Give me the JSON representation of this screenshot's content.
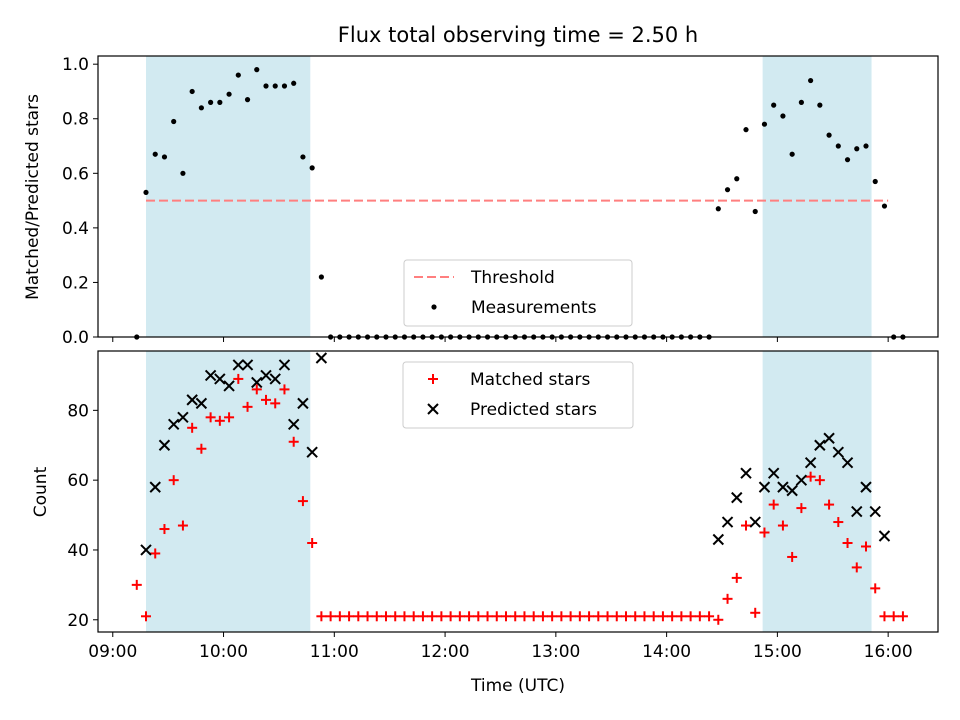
{
  "chart_data": [
    {
      "type": "scatter",
      "title": "Flux total observing time = 2.50 h",
      "xlabel": "",
      "ylabel": "Matched/Predicted stars",
      "x_time_range": [
        "08:52",
        "16:27"
      ],
      "ylim": [
        0,
        1.03
      ],
      "yticks": [
        0.0,
        0.2,
        0.4,
        0.6,
        0.8,
        1.0
      ],
      "ytick_labels": [
        "0.0",
        "0.2",
        "0.4",
        "0.6",
        "0.8",
        "1.0"
      ],
      "grid": false,
      "legend_position": "lower center",
      "shaded_intervals": [
        [
          "09:18",
          "10:47"
        ],
        [
          "14:52",
          "15:51"
        ]
      ],
      "shade_color": "#add8e6",
      "threshold": {
        "name": "Threshold",
        "value": 0.5,
        "x_range": [
          "09:18",
          "16:00"
        ],
        "color": "#ff7f7f",
        "style": "dashed"
      },
      "series": [
        {
          "name": "Measurements",
          "color": "#000000",
          "marker": "dot",
          "points": [
            [
              "09:13",
              0.0
            ],
            [
              "09:18",
              0.53
            ],
            [
              "09:23",
              0.67
            ],
            [
              "09:28",
              0.66
            ],
            [
              "09:33",
              0.79
            ],
            [
              "09:38",
              0.6
            ],
            [
              "09:43",
              0.9
            ],
            [
              "09:48",
              0.84
            ],
            [
              "09:53",
              0.86
            ],
            [
              "09:58",
              0.86
            ],
            [
              "10:03",
              0.89
            ],
            [
              "10:08",
              0.96
            ],
            [
              "10:13",
              0.87
            ],
            [
              "10:18",
              0.98
            ],
            [
              "10:23",
              0.92
            ],
            [
              "10:28",
              0.92
            ],
            [
              "10:33",
              0.92
            ],
            [
              "10:38",
              0.93
            ],
            [
              "10:43",
              0.66
            ],
            [
              "10:48",
              0.62
            ],
            [
              "10:53",
              0.22
            ],
            [
              "10:58",
              0.0
            ],
            [
              "11:03",
              0.0
            ],
            [
              "11:08",
              0.0
            ],
            [
              "11:13",
              0.0
            ],
            [
              "11:18",
              0.0
            ],
            [
              "11:23",
              0.0
            ],
            [
              "11:28",
              0.0
            ],
            [
              "11:33",
              0.0
            ],
            [
              "11:38",
              0.0
            ],
            [
              "11:43",
              0.0
            ],
            [
              "11:48",
              0.0
            ],
            [
              "11:53",
              0.0
            ],
            [
              "11:58",
              0.0
            ],
            [
              "12:03",
              0.0
            ],
            [
              "12:08",
              0.0
            ],
            [
              "12:13",
              0.0
            ],
            [
              "12:18",
              0.0
            ],
            [
              "12:23",
              0.0
            ],
            [
              "12:28",
              0.0
            ],
            [
              "12:33",
              0.0
            ],
            [
              "12:38",
              0.0
            ],
            [
              "12:43",
              0.0
            ],
            [
              "12:48",
              0.0
            ],
            [
              "12:53",
              0.0
            ],
            [
              "12:58",
              0.0
            ],
            [
              "13:03",
              0.0
            ],
            [
              "13:08",
              0.0
            ],
            [
              "13:13",
              0.0
            ],
            [
              "13:18",
              0.0
            ],
            [
              "13:23",
              0.0
            ],
            [
              "13:28",
              0.0
            ],
            [
              "13:33",
              0.0
            ],
            [
              "13:38",
              0.0
            ],
            [
              "13:43",
              0.0
            ],
            [
              "13:48",
              0.0
            ],
            [
              "13:53",
              0.0
            ],
            [
              "13:58",
              0.0
            ],
            [
              "14:03",
              0.0
            ],
            [
              "14:08",
              0.0
            ],
            [
              "14:13",
              0.0
            ],
            [
              "14:18",
              0.0
            ],
            [
              "14:23",
              0.0
            ],
            [
              "14:28",
              0.47
            ],
            [
              "14:33",
              0.54
            ],
            [
              "14:38",
              0.58
            ],
            [
              "14:43",
              0.76
            ],
            [
              "14:48",
              0.46
            ],
            [
              "14:53",
              0.78
            ],
            [
              "14:58",
              0.85
            ],
            [
              "15:03",
              0.81
            ],
            [
              "15:08",
              0.67
            ],
            [
              "15:13",
              0.86
            ],
            [
              "15:18",
              0.94
            ],
            [
              "15:23",
              0.85
            ],
            [
              "15:28",
              0.74
            ],
            [
              "15:33",
              0.7
            ],
            [
              "15:38",
              0.65
            ],
            [
              "15:43",
              0.69
            ],
            [
              "15:48",
              0.7
            ],
            [
              "15:53",
              0.57
            ],
            [
              "15:58",
              0.48
            ],
            [
              "16:03",
              0.0
            ],
            [
              "16:08",
              0.0
            ]
          ]
        }
      ]
    },
    {
      "type": "scatter",
      "title": "",
      "xlabel": "Time (UTC)",
      "ylabel": "Count",
      "x_time_range": [
        "08:52",
        "16:27"
      ],
      "ylim": [
        16.5,
        97
      ],
      "yticks": [
        20,
        40,
        60,
        80
      ],
      "ytick_labels": [
        "20",
        "40",
        "60",
        "80"
      ],
      "xticks": [
        "09:00",
        "10:00",
        "11:00",
        "12:00",
        "13:00",
        "14:00",
        "15:00",
        "16:00"
      ],
      "xtick_labels": [
        "09:00",
        "10:00",
        "11:00",
        "12:00",
        "13:00",
        "14:00",
        "15:00",
        "16:00"
      ],
      "grid": false,
      "legend_position": "upper center",
      "shaded_intervals": [
        [
          "09:18",
          "10:47"
        ],
        [
          "14:52",
          "15:51"
        ]
      ],
      "series": [
        {
          "name": "Matched stars",
          "color": "#ff0000",
          "marker": "plus",
          "points": [
            [
              "09:13",
              30
            ],
            [
              "09:18",
              21
            ],
            [
              "09:23",
              39
            ],
            [
              "09:28",
              46
            ],
            [
              "09:33",
              60
            ],
            [
              "09:38",
              47
            ],
            [
              "09:43",
              75
            ],
            [
              "09:48",
              69
            ],
            [
              "09:53",
              78
            ],
            [
              "09:58",
              77
            ],
            [
              "10:03",
              78
            ],
            [
              "10:08",
              89
            ],
            [
              "10:13",
              81
            ],
            [
              "10:18",
              86
            ],
            [
              "10:23",
              83
            ],
            [
              "10:28",
              82
            ],
            [
              "10:33",
              86
            ],
            [
              "10:38",
              71
            ],
            [
              "10:43",
              54
            ],
            [
              "10:48",
              42
            ],
            [
              "10:53",
              21
            ],
            [
              "10:58",
              21
            ],
            [
              "11:03",
              21
            ],
            [
              "11:08",
              21
            ],
            [
              "11:13",
              21
            ],
            [
              "11:18",
              21
            ],
            [
              "11:23",
              21
            ],
            [
              "11:28",
              21
            ],
            [
              "11:33",
              21
            ],
            [
              "11:38",
              21
            ],
            [
              "11:43",
              21
            ],
            [
              "11:48",
              21
            ],
            [
              "11:53",
              21
            ],
            [
              "11:58",
              21
            ],
            [
              "12:03",
              21
            ],
            [
              "12:08",
              21
            ],
            [
              "12:13",
              21
            ],
            [
              "12:18",
              21
            ],
            [
              "12:23",
              21
            ],
            [
              "12:28",
              21
            ],
            [
              "12:33",
              21
            ],
            [
              "12:38",
              21
            ],
            [
              "12:43",
              21
            ],
            [
              "12:48",
              21
            ],
            [
              "12:53",
              21
            ],
            [
              "12:58",
              21
            ],
            [
              "13:03",
              21
            ],
            [
              "13:08",
              21
            ],
            [
              "13:13",
              21
            ],
            [
              "13:18",
              21
            ],
            [
              "13:23",
              21
            ],
            [
              "13:28",
              21
            ],
            [
              "13:33",
              21
            ],
            [
              "13:38",
              21
            ],
            [
              "13:43",
              21
            ],
            [
              "13:48",
              21
            ],
            [
              "13:53",
              21
            ],
            [
              "13:58",
              21
            ],
            [
              "14:03",
              21
            ],
            [
              "14:08",
              21
            ],
            [
              "14:13",
              21
            ],
            [
              "14:18",
              21
            ],
            [
              "14:23",
              21
            ],
            [
              "14:28",
              20
            ],
            [
              "14:33",
              26
            ],
            [
              "14:38",
              32
            ],
            [
              "14:43",
              47
            ],
            [
              "14:48",
              22
            ],
            [
              "14:53",
              45
            ],
            [
              "14:58",
              53
            ],
            [
              "15:03",
              47
            ],
            [
              "15:08",
              38
            ],
            [
              "15:13",
              52
            ],
            [
              "15:18",
              61
            ],
            [
              "15:23",
              60
            ],
            [
              "15:28",
              53
            ],
            [
              "15:33",
              48
            ],
            [
              "15:38",
              42
            ],
            [
              "15:43",
              35
            ],
            [
              "15:48",
              41
            ],
            [
              "15:53",
              29
            ],
            [
              "15:58",
              21
            ],
            [
              "16:03",
              21
            ],
            [
              "16:08",
              21
            ]
          ]
        },
        {
          "name": "Predicted stars",
          "color": "#000000",
          "marker": "x",
          "points": [
            [
              "09:18",
              40
            ],
            [
              "09:23",
              58
            ],
            [
              "09:28",
              70
            ],
            [
              "09:33",
              76
            ],
            [
              "09:38",
              78
            ],
            [
              "09:43",
              83
            ],
            [
              "09:48",
              82
            ],
            [
              "09:53",
              90
            ],
            [
              "09:58",
              89
            ],
            [
              "10:03",
              87
            ],
            [
              "10:08",
              93
            ],
            [
              "10:13",
              93
            ],
            [
              "10:18",
              88
            ],
            [
              "10:23",
              90
            ],
            [
              "10:28",
              89
            ],
            [
              "10:33",
              93
            ],
            [
              "10:38",
              76
            ],
            [
              "10:43",
              82
            ],
            [
              "10:48",
              68
            ],
            [
              "10:53",
              95
            ],
            [
              "14:28",
              43
            ],
            [
              "14:33",
              48
            ],
            [
              "14:38",
              55
            ],
            [
              "14:43",
              62
            ],
            [
              "14:48",
              48
            ],
            [
              "14:53",
              58
            ],
            [
              "14:58",
              62
            ],
            [
              "15:03",
              58
            ],
            [
              "15:08",
              57
            ],
            [
              "15:13",
              60
            ],
            [
              "15:18",
              65
            ],
            [
              "15:23",
              70
            ],
            [
              "15:28",
              72
            ],
            [
              "15:33",
              68
            ],
            [
              "15:38",
              65
            ],
            [
              "15:43",
              51
            ],
            [
              "15:48",
              58
            ],
            [
              "15:53",
              51
            ],
            [
              "15:58",
              44
            ]
          ]
        }
      ]
    }
  ]
}
